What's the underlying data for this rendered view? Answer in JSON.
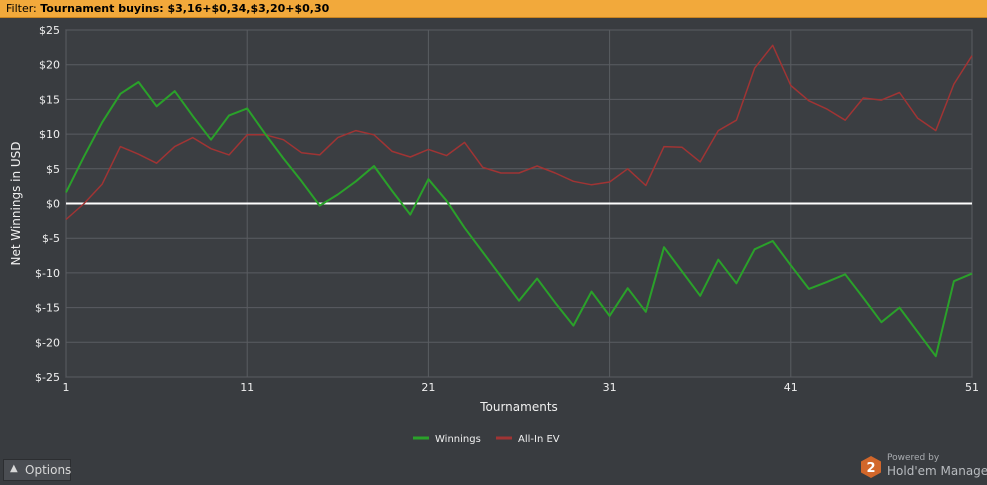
{
  "filter": {
    "prefix": "Filter: ",
    "text": "Tournament buyins: $3,16+$0,34,$3,20+$0,30"
  },
  "options_label": "Options",
  "brand": {
    "powered_by": "Powered by",
    "name": "Hold'em Manager",
    "logo_digit": "2"
  },
  "colors": {
    "background": "#393c40",
    "grid": "#5a5d62",
    "text": "#f0f0f0",
    "winnings": "#2aa12a",
    "allin_ev": "#a03434",
    "zero_line": "#ffffff"
  },
  "chart_data": {
    "type": "line",
    "xlabel": "Tournaments",
    "ylabel": "Net Winnings in USD",
    "xlim": [
      1,
      51
    ],
    "ylim": [
      -25,
      25
    ],
    "x_ticks": [
      1,
      11,
      21,
      31,
      41,
      51
    ],
    "y_ticks": [
      25,
      20,
      15,
      10,
      5,
      0,
      -5,
      -10,
      -15,
      -20,
      -25
    ],
    "y_tick_labels": [
      "$25",
      "$20",
      "$15",
      "$10",
      "$5",
      "$0",
      "$-5",
      "$-10",
      "$-15",
      "$-20",
      "$-25"
    ],
    "grid": true,
    "legend_position": "bottom",
    "x": [
      1,
      2,
      3,
      4,
      5,
      6,
      7,
      8,
      9,
      10,
      11,
      12,
      13,
      14,
      15,
      16,
      17,
      18,
      19,
      20,
      21,
      22,
      23,
      24,
      25,
      26,
      27,
      28,
      29,
      30,
      31,
      32,
      33,
      34,
      35,
      36,
      37,
      38,
      39,
      40,
      41,
      42,
      43,
      44,
      45,
      46,
      47,
      48,
      49,
      50,
      51
    ],
    "series": [
      {
        "name": "Winnings",
        "color": "#2aa12a",
        "values": [
          1.6,
          6.8,
          11.7,
          15.8,
          17.5,
          14.0,
          16.2,
          12.6,
          9.2,
          12.7,
          13.7,
          10.0,
          6.5,
          3.2,
          -0.3,
          1.3,
          3.2,
          5.4,
          1.8,
          -1.6,
          3.5,
          0.4,
          -3.5,
          -7.0,
          -10.5,
          -14.0,
          -10.8,
          -14.3,
          -17.6,
          -12.7,
          -16.2,
          -12.2,
          -15.6,
          -6.3,
          -9.8,
          -13.3,
          -8.1,
          -11.5,
          -6.6,
          -5.4,
          -8.9,
          -12.3,
          -11.3,
          -10.2,
          -13.6,
          -17.1,
          -15.0,
          -18.5,
          -22.0,
          -11.2,
          -10.1
        ]
      },
      {
        "name": "All-In EV",
        "color": "#a03434",
        "values": [
          -2.3,
          0.0,
          2.8,
          8.2,
          7.1,
          5.8,
          8.2,
          9.5,
          7.9,
          7.0,
          9.9,
          9.9,
          9.2,
          7.3,
          7.0,
          9.5,
          10.5,
          9.9,
          7.5,
          6.7,
          7.8,
          6.9,
          8.8,
          5.2,
          4.4,
          4.4,
          5.4,
          4.4,
          3.2,
          2.7,
          3.1,
          5.0,
          2.6,
          8.2,
          8.1,
          6.0,
          10.5,
          12.0,
          19.5,
          22.8,
          17.0,
          14.8,
          13.6,
          12.0,
          15.2,
          14.9,
          16.0,
          12.3,
          10.5,
          17.2,
          21.3
        ]
      }
    ]
  }
}
